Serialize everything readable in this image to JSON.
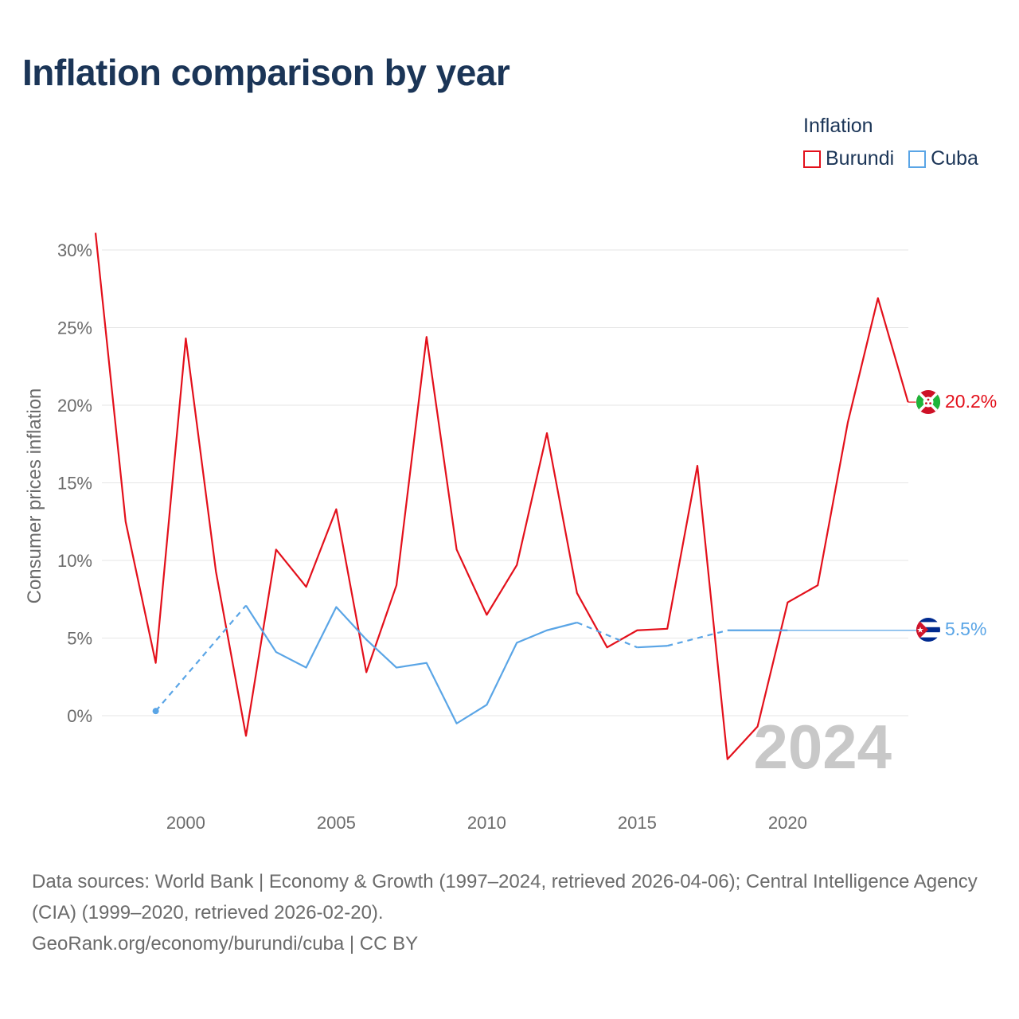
{
  "header": {
    "title": "Inflation comparison by year"
  },
  "legend": {
    "title": "Inflation",
    "items": [
      {
        "label": "Burundi",
        "color": "#e3101b"
      },
      {
        "label": "Cuba",
        "color": "#5aa5e6"
      }
    ]
  },
  "year_watermark": "2024",
  "footer": {
    "sources": "Data sources: World Bank | Economy & Growth (1997–2024, retrieved 2026-04-06); Central Intelligence Agency (CIA) (1999–2020, retrieved 2026-02-20).",
    "credit": "GeoRank.org/economy/burundi/cuba | CC BY"
  },
  "chart_data": {
    "type": "line",
    "title": "Inflation comparison by year",
    "xlabel": "",
    "ylabel": "Consumer prices inflation",
    "xlim": [
      1997,
      2024
    ],
    "ylim": [
      -5.5,
      30.5
    ],
    "x_ticks": [
      2000,
      2005,
      2010,
      2015,
      2020
    ],
    "x_tick_labels": [
      "2000",
      "2005",
      "2010",
      "2015",
      "2020"
    ],
    "y_ticks": [
      0,
      5,
      10,
      15,
      20,
      25,
      30
    ],
    "y_tick_labels": [
      "0%",
      "5%",
      "10%",
      "15%",
      "20%",
      "25%",
      "30%"
    ],
    "grid": true,
    "series": [
      {
        "name": "Burundi",
        "color": "#e3101b",
        "x": [
          1997,
          1998,
          1999,
          2000,
          2001,
          2002,
          2003,
          2004,
          2005,
          2006,
          2007,
          2008,
          2009,
          2010,
          2011,
          2012,
          2013,
          2014,
          2015,
          2016,
          2017,
          2018,
          2019,
          2020,
          2021,
          2022,
          2023,
          2024
        ],
        "values": [
          31.1,
          12.5,
          3.4,
          24.3,
          9.3,
          -1.3,
          10.7,
          8.3,
          13.3,
          2.8,
          8.4,
          24.4,
          10.7,
          6.5,
          9.7,
          18.2,
          7.9,
          4.4,
          5.5,
          5.6,
          16.1,
          -2.8,
          -0.7,
          7.3,
          8.4,
          18.9,
          26.9,
          20.2
        ],
        "end_label": "20.2%"
      },
      {
        "name": "Cuba",
        "color": "#5aa5e6",
        "x": [
          1999,
          2002,
          2003,
          2004,
          2005,
          2006,
          2007,
          2008,
          2009,
          2010,
          2011,
          2012,
          2013,
          2015,
          2016,
          2018,
          2019,
          2020
        ],
        "values": [
          0.3,
          7.1,
          4.1,
          3.1,
          7.0,
          4.9,
          3.1,
          3.4,
          -0.5,
          0.7,
          4.7,
          5.5,
          6.0,
          4.4,
          4.5,
          5.5,
          5.5,
          5.5
        ],
        "dashed_segments": [
          [
            1999,
            2002
          ],
          [
            2013,
            2015
          ],
          [
            2016,
            2018
          ]
        ],
        "carry_forward_to": 2024,
        "end_label": "5.5%"
      }
    ]
  }
}
